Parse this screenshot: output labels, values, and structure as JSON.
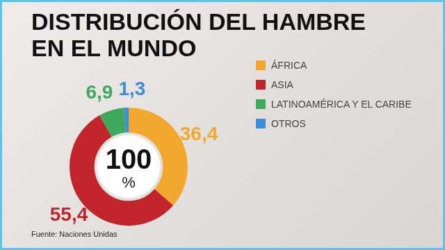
{
  "chart_data": {
    "type": "doughnut",
    "title": "DISTRIBUCIÓN DEL HAMBRE EN EL MUNDO",
    "categories": [
      "ÁFRICA",
      "ASIA",
      "LATINOAMÉRICA Y EL CARIBE",
      "OTROS"
    ],
    "values": [
      36.4,
      55.4,
      6.9,
      1.3
    ],
    "value_labels": [
      "36,4",
      "55,4",
      "6,9",
      "1,3"
    ],
    "colors": [
      "#f2a82e",
      "#c1242b",
      "#3ea95c",
      "#3b8fd8"
    ],
    "data_labels": true,
    "legend": "right",
    "center_text": [
      "100",
      "%"
    ],
    "source": "Fuente: Naciones Unidas"
  }
}
